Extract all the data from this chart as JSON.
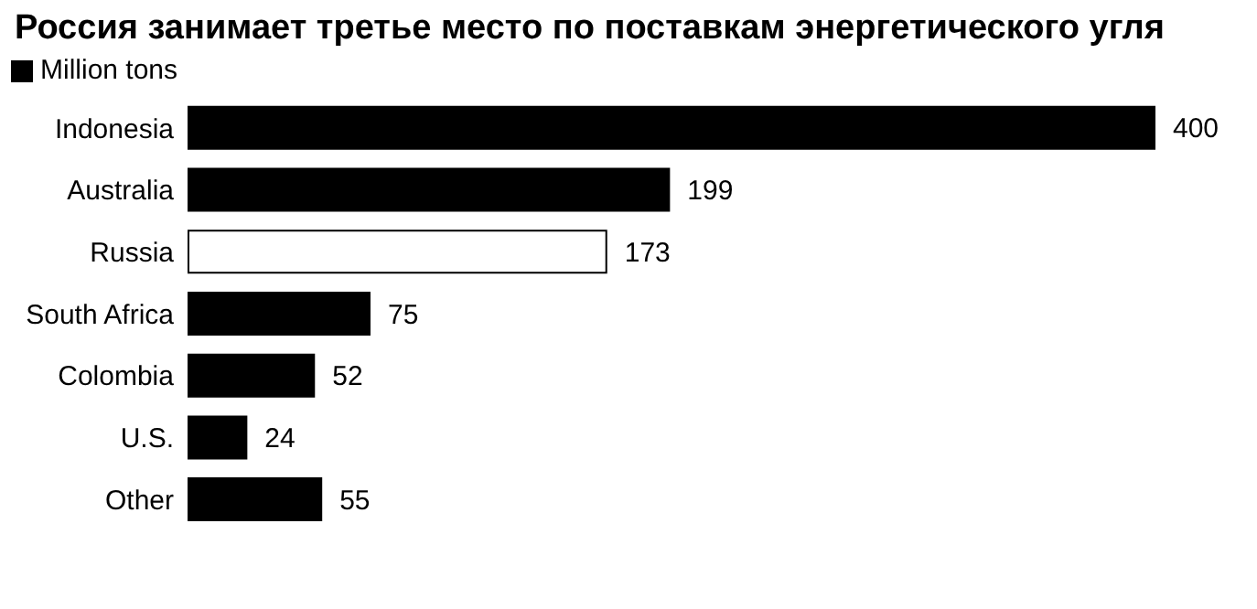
{
  "chart_data": {
    "type": "bar",
    "orientation": "horizontal",
    "title": "Россия занимает третье место по поставкам энергетического угля",
    "categories": [
      "Indonesia",
      "Australia",
      "Russia",
      "South Africa",
      "Colombia",
      "U.S.",
      "Other"
    ],
    "series": [
      {
        "name": "Million tons",
        "color": "#000000",
        "colors": [
          "#000000",
          "#000000",
          "#ffffff",
          "#000000",
          "#000000",
          "#000000",
          "#000000"
        ],
        "values": [
          400,
          199,
          173,
          75,
          52,
          24,
          55
        ]
      }
    ],
    "data_labels": true,
    "legend": "top left",
    "grid": false
  }
}
